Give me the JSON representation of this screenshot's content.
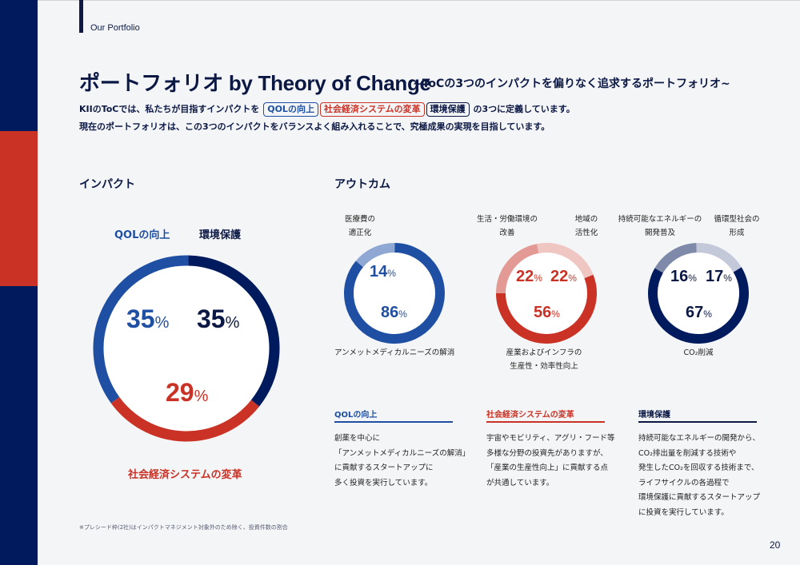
{
  "header": {
    "section_label": "Our Portfolio"
  },
  "title": {
    "main_jp": "ポートフォリオ",
    "main_en": " by Theory of Change",
    "subtitle": "~ToCの3つのインパクトを偏りなく追求するポートフォリオ~"
  },
  "intro": {
    "line1_prefix": "KIIのToCでは、私たちが目指すインパクトを",
    "tags": [
      "QOLの向上",
      "社会経済システムの変革",
      "環境保護"
    ],
    "line1_suffix": "の3つに定義しています。",
    "line2": "現在のポートフォリオは、この3つのインパクトをバランスよく組み入れることで、究極成果の実現を目指しています。"
  },
  "colors": {
    "navy": "#001a5e",
    "blue": "#1f4fa3",
    "red": "#c93225",
    "light_blue": "#8fa8d3",
    "light_red": "#e39a94",
    "pale_red": "#f0c6c2",
    "slate": "#7f8aab",
    "pale_slate": "#c3c9d9"
  },
  "impact": {
    "heading": "インパクト"
  },
  "outcome": {
    "heading": "アウトカム"
  },
  "chart_data": [
    {
      "type": "pie",
      "title": "インパクト",
      "categories": [
        "QOLの向上",
        "環境保護",
        "社会経済システムの変革"
      ],
      "values": [
        35,
        35,
        29
      ],
      "labels": [
        "35%",
        "35%",
        "29%"
      ],
      "colors": [
        "#1f4fa3",
        "#001a5e",
        "#c93225"
      ]
    },
    {
      "type": "pie",
      "title": "QOLの向上 アウトカム",
      "categories": [
        "医療費の適正化",
        "アンメットメディカルニーズの解消"
      ],
      "values": [
        14,
        86
      ],
      "labels": [
        "14%",
        "86%"
      ],
      "colors": [
        "#8fa8d3",
        "#1f4fa3"
      ]
    },
    {
      "type": "pie",
      "title": "社会経済システムの変革 アウトカム",
      "categories": [
        "生活・労働環境の改善",
        "地域の活性化",
        "産業およびインフラの生産性・効率性向上"
      ],
      "values": [
        22,
        22,
        56
      ],
      "labels": [
        "22%",
        "22%",
        "56%"
      ],
      "colors": [
        "#e39a94",
        "#f0c6c2",
        "#c93225"
      ]
    },
    {
      "type": "pie",
      "title": "環境保護 アウトカム",
      "categories": [
        "持続可能なエネルギーの開発普及",
        "循環型社会の形成",
        "CO₂削減"
      ],
      "values": [
        16,
        17,
        67
      ],
      "labels": [
        "16%",
        "17%",
        "67%"
      ],
      "colors": [
        "#7f8aab",
        "#c3c9d9",
        "#001a5e"
      ]
    }
  ],
  "donut_labels": {
    "impact": {
      "qol": "QOLの向上",
      "env": "環境保護",
      "soc": "社会経済システムの変革"
    },
    "qol": {
      "top": [
        "医療費の",
        "適正化"
      ],
      "bottom": [
        "アンメットメディカルニーズの解消"
      ]
    },
    "soc": {
      "top_left": [
        "生活・労働環境の",
        "改善"
      ],
      "top_right": [
        "地域の",
        "活性化"
      ],
      "bottom": [
        "産業およびインフラの",
        "生産性・効率性向上"
      ]
    },
    "env": {
      "top_left": [
        "持続可能なエネルギーの",
        "開発普及"
      ],
      "top_right": [
        "循環型社会の",
        "形成"
      ],
      "bottom": [
        "CO₂削減"
      ]
    }
  },
  "cards": [
    {
      "title": "QOLの向上",
      "lines": [
        "創薬を中心に",
        "「アンメットメディカルニーズの解消」",
        "に貢献するスタートアップに",
        "多く投資を実行しています。"
      ]
    },
    {
      "title": "社会経済システムの変革",
      "lines": [
        "宇宙やモビリティ、アグリ・フード等",
        "多様な分野の投資先がありますが、",
        "「産業の生産性向上」に貢献する点",
        "が共通しています。"
      ]
    },
    {
      "title": "環境保護",
      "lines": [
        "持続可能なエネルギーの開発から、",
        "CO₂排出量を削減する技術や",
        "発生したCO₂を回収する技術まで、",
        "ライフサイクルの各過程で",
        "環境保護に貢献するスタートアップ",
        "に投資を実行しています。"
      ]
    }
  ],
  "footnote": "※プレシード枠(2社)はインパクトマネジメント対象外のため除く、投資件数の割合",
  "page_number": "20"
}
